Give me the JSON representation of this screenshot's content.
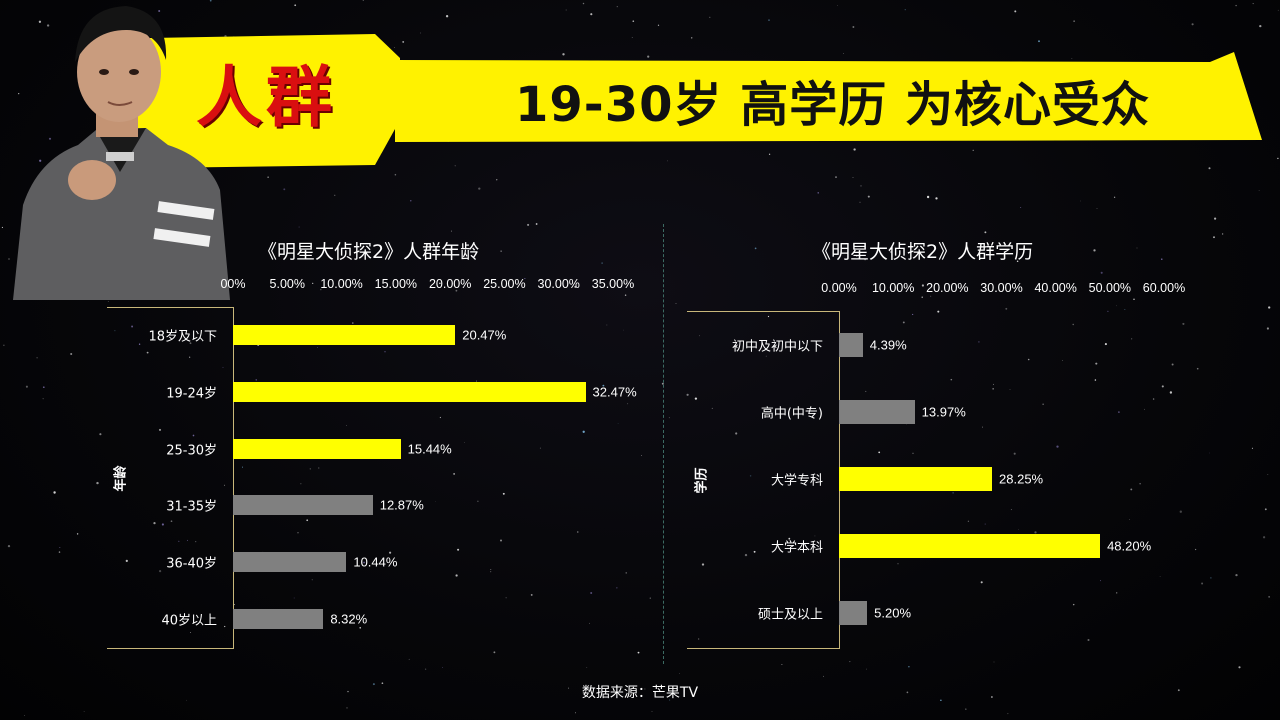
{
  "header": {
    "left_text": "人群",
    "right_text": "19-30岁 高学历 为核心受众"
  },
  "colors": {
    "banner_yellow": "#fff200",
    "highlight_bar": "#ffff00",
    "gray_bar": "#808080",
    "banner_red": "#d90f10",
    "axis_frame": "#c8b77a"
  },
  "chart_data": [
    {
      "type": "bar",
      "orientation": "horizontal",
      "title": "《明星大侦探2》人群年龄",
      "ylabel": "年龄",
      "categories": [
        "18岁及以下",
        "19-24岁",
        "25-30岁",
        "31-35岁",
        "36-40岁",
        "40岁以上"
      ],
      "values": [
        20.47,
        32.47,
        15.44,
        12.87,
        10.44,
        8.32
      ],
      "value_labels": [
        "20.47%",
        "32.47%",
        "15.44%",
        "12.87%",
        "10.44%",
        "8.32%"
      ],
      "highlighted": [
        true,
        true,
        true,
        false,
        false,
        false
      ],
      "xlim": [
        0,
        35
      ],
      "ticks": [
        "00%",
        "5.00%",
        "10.00%",
        "15.00%",
        "20.00%",
        "25.00%",
        "30.00%",
        "35.00%"
      ],
      "tick_values": [
        0,
        5,
        10,
        15,
        20,
        25,
        30,
        35
      ],
      "x_axis_position": "top",
      "grid": false
    },
    {
      "type": "bar",
      "orientation": "horizontal",
      "title": "《明星大侦探2》人群学历",
      "ylabel": "学历",
      "categories": [
        "初中及初中以下",
        "高中(中专)",
        "大学专科",
        "大学本科",
        "硕士及以上"
      ],
      "values": [
        4.39,
        13.97,
        28.25,
        48.2,
        5.2
      ],
      "value_labels": [
        "4.39%",
        "13.97%",
        "28.25%",
        "48.20%",
        "5.20%"
      ],
      "highlighted": [
        false,
        false,
        true,
        true,
        false
      ],
      "xlim": [
        0,
        60
      ],
      "ticks": [
        "0.00%",
        "10.00%",
        "20.00%",
        "30.00%",
        "40.00%",
        "50.00%",
        "60.00%"
      ],
      "tick_values": [
        0,
        10,
        20,
        30,
        40,
        50,
        60
      ],
      "x_axis_position": "top",
      "grid": false
    }
  ],
  "footer": {
    "source": "数据来源：芒果TV"
  }
}
